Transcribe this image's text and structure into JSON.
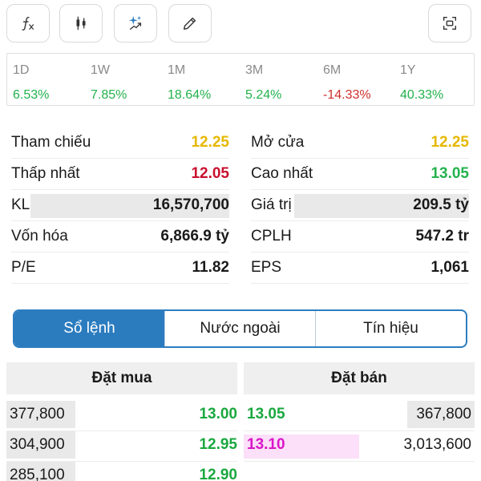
{
  "toolbar": {
    "buttons": [
      {
        "id": "formula",
        "icon": "function-icon"
      },
      {
        "id": "candles",
        "icon": "candlestick-icon"
      },
      {
        "id": "ai",
        "icon": "sparkle-trend-icon"
      },
      {
        "id": "draw",
        "icon": "pencil-icon"
      },
      {
        "id": "screenshot",
        "icon": "capture-icon"
      }
    ]
  },
  "performance": [
    {
      "label": "1D",
      "value": "6.53%",
      "trend": "up"
    },
    {
      "label": "1W",
      "value": "7.85%",
      "trend": "up"
    },
    {
      "label": "1M",
      "value": "18.64%",
      "trend": "up"
    },
    {
      "label": "3M",
      "value": "5.24%",
      "trend": "up"
    },
    {
      "label": "6M",
      "value": "-14.33%",
      "trend": "down"
    },
    {
      "label": "1Y",
      "value": "40.33%",
      "trend": "up"
    }
  ],
  "stats": {
    "left": [
      {
        "label": "Tham chiếu",
        "value": "12.25"
      },
      {
        "label": "Thấp nhất",
        "value": "12.05"
      },
      {
        "label": "KL",
        "value": "16,570,700"
      },
      {
        "label": "Vốn hóa",
        "value": "6,866.9 tỷ"
      },
      {
        "label": "P/E",
        "value": "11.82"
      }
    ],
    "right": [
      {
        "label": "Mở cửa",
        "value": "12.25"
      },
      {
        "label": "Cao nhất",
        "value": "13.05"
      },
      {
        "label": "Giá trị",
        "value": "209.5 tỷ"
      },
      {
        "label": "CPLH",
        "value": "547.2 tr"
      },
      {
        "label": "EPS",
        "value": "1,061"
      }
    ]
  },
  "tabs": [
    {
      "label": "Sổ lệnh",
      "active": true
    },
    {
      "label": "Nước ngoài",
      "active": false
    },
    {
      "label": "Tín hiệu",
      "active": false
    }
  ],
  "order_book": {
    "buy_header": "Đặt mua",
    "sell_header": "Đặt bán",
    "buy": [
      {
        "qty": "377,800",
        "price": "13.00"
      },
      {
        "qty": "304,900",
        "price": "12.95"
      },
      {
        "qty": "285,100",
        "price": "12.90"
      }
    ],
    "sell": [
      {
        "price": "13.05",
        "qty": "367,800"
      },
      {
        "price": "13.10",
        "qty": "3,013,600"
      }
    ]
  },
  "colors": {
    "up": "#22b24c",
    "down": "#d0302a",
    "reference": "#e6b800",
    "ceiling": "#d916c8",
    "tab_active": "#2b7bbf"
  }
}
